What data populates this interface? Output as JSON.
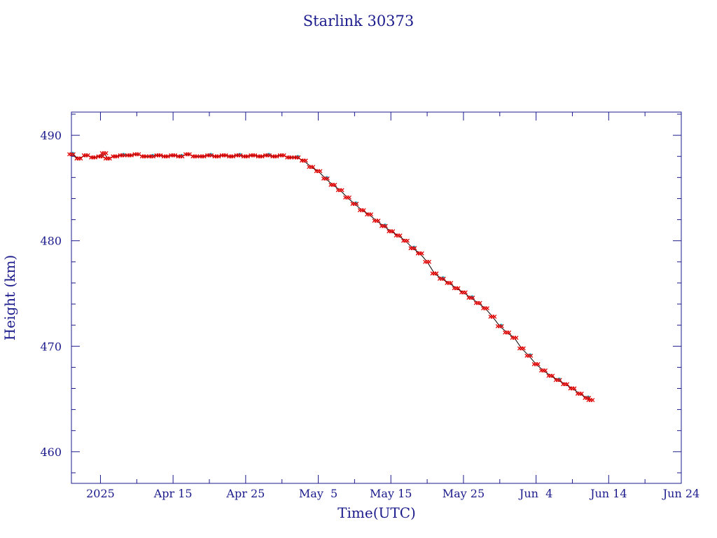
{
  "chart_data": {
    "type": "line",
    "title": "Starlink 30373",
    "xlabel": "Time(UTC)",
    "ylabel": "Height (km)",
    "ylim": [
      457.0,
      492.2
    ],
    "xlim": [
      "2025-04-01",
      "2025-06-24"
    ],
    "grid": false,
    "x_tick_labels": [
      {
        "date": "2025-04-05",
        "label": "2025"
      },
      {
        "date": "2025-04-15",
        "label": "Apr 15"
      },
      {
        "date": "2025-04-25",
        "label": "Apr 25"
      },
      {
        "date": "2025-05-05",
        "label": "May  5"
      },
      {
        "date": "2025-05-15",
        "label": "May 15"
      },
      {
        "date": "2025-05-25",
        "label": "May 25"
      },
      {
        "date": "2025-06-04",
        "label": "Jun  4"
      },
      {
        "date": "2025-06-14",
        "label": "Jun 14"
      },
      {
        "date": "2025-06-24",
        "label": "Jun 24"
      }
    ],
    "y_tick_labels": [
      460,
      470,
      480,
      490
    ],
    "colors": {
      "axis": "#1a1a8c",
      "line": "#000000",
      "marker_primary": "#e00000",
      "marker_secondary": "#00e5ff"
    },
    "series": [
      {
        "values": [
          [
            "2025-04-01",
            488.2
          ],
          [
            "2025-04-02",
            487.8
          ],
          [
            "2025-04-03",
            488.1
          ],
          [
            "2025-04-04",
            487.9
          ],
          [
            "2025-04-05",
            488.0
          ],
          [
            "2025-04-05T12:00",
            488.3
          ],
          [
            "2025-04-06",
            487.8
          ],
          [
            "2025-04-07",
            488.0
          ],
          [
            "2025-04-08",
            488.1
          ],
          [
            "2025-04-09",
            488.1
          ],
          [
            "2025-04-10",
            488.2
          ],
          [
            "2025-04-11",
            488.0
          ],
          [
            "2025-04-12",
            488.0
          ],
          [
            "2025-04-13",
            488.1
          ],
          [
            "2025-04-14",
            488.0
          ],
          [
            "2025-04-15",
            488.1
          ],
          [
            "2025-04-16",
            488.0
          ],
          [
            "2025-04-17",
            488.2
          ],
          [
            "2025-04-18",
            488.0
          ],
          [
            "2025-04-19",
            488.0
          ],
          [
            "2025-04-20",
            488.1
          ],
          [
            "2025-04-21",
            488.0
          ],
          [
            "2025-04-22",
            488.1
          ],
          [
            "2025-04-23",
            488.0
          ],
          [
            "2025-04-24",
            488.1
          ],
          [
            "2025-04-25",
            488.0
          ],
          [
            "2025-04-26",
            488.1
          ],
          [
            "2025-04-27",
            488.0
          ],
          [
            "2025-04-28",
            488.1
          ],
          [
            "2025-04-29",
            488.0
          ],
          [
            "2025-04-30",
            488.1
          ],
          [
            "2025-05-01",
            487.9
          ],
          [
            "2025-05-02",
            487.9
          ],
          [
            "2025-05-03",
            487.6
          ],
          [
            "2025-05-04",
            487.0
          ],
          [
            "2025-05-05",
            486.6
          ],
          [
            "2025-05-06",
            485.9
          ],
          [
            "2025-05-07",
            485.3
          ],
          [
            "2025-05-08",
            484.8
          ],
          [
            "2025-05-09",
            484.1
          ],
          [
            "2025-05-10",
            483.5
          ],
          [
            "2025-05-11",
            482.9
          ],
          [
            "2025-05-12",
            482.5
          ],
          [
            "2025-05-13",
            481.9
          ],
          [
            "2025-05-14",
            481.4
          ],
          [
            "2025-05-15",
            480.9
          ],
          [
            "2025-05-16",
            480.5
          ],
          [
            "2025-05-17",
            480.0
          ],
          [
            "2025-05-18",
            479.3
          ],
          [
            "2025-05-19",
            478.8
          ],
          [
            "2025-05-20",
            478.0
          ],
          [
            "2025-05-21",
            476.9
          ],
          [
            "2025-05-22",
            476.4
          ],
          [
            "2025-05-23",
            476.0
          ],
          [
            "2025-05-24",
            475.5
          ],
          [
            "2025-05-25",
            475.1
          ],
          [
            "2025-05-26",
            474.6
          ],
          [
            "2025-05-27",
            474.1
          ],
          [
            "2025-05-28",
            473.6
          ],
          [
            "2025-05-29",
            472.8
          ],
          [
            "2025-05-30",
            471.9
          ],
          [
            "2025-05-31",
            471.3
          ],
          [
            "2025-06-01",
            470.8
          ],
          [
            "2025-06-02",
            469.8
          ],
          [
            "2025-06-03",
            469.1
          ],
          [
            "2025-06-04",
            468.3
          ],
          [
            "2025-06-05",
            467.7
          ],
          [
            "2025-06-06",
            467.2
          ],
          [
            "2025-06-07",
            466.8
          ],
          [
            "2025-06-08",
            466.4
          ],
          [
            "2025-06-09",
            466.0
          ],
          [
            "2025-06-10",
            465.5
          ],
          [
            "2025-06-11",
            465.1
          ],
          [
            "2025-06-11T12:00",
            464.9
          ]
        ]
      }
    ]
  }
}
